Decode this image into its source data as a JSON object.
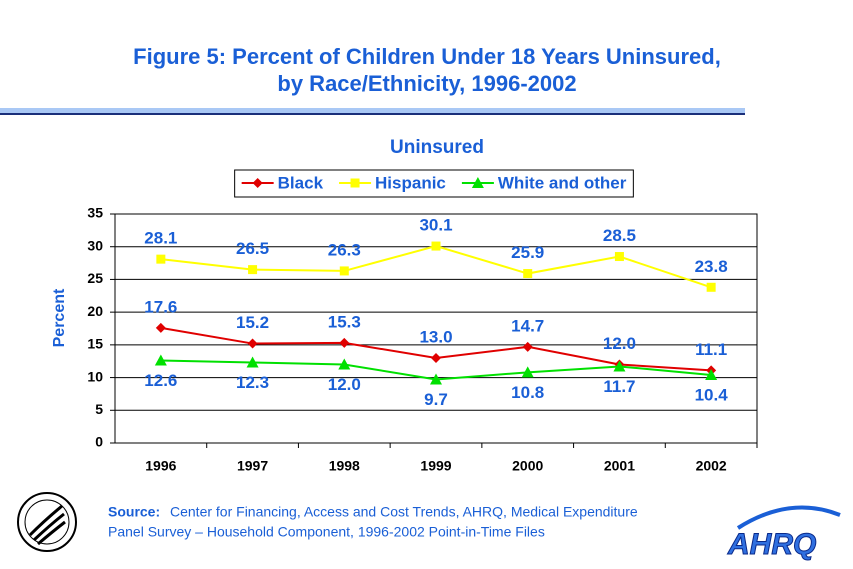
{
  "title_lines": [
    "Figure 5: Percent of Children Under 18 Years Uninsured,",
    "by Race/Ethnicity, 1996-2002"
  ],
  "chart_data": {
    "type": "line",
    "title": "Uninsured",
    "y_label": "Percent",
    "categories": [
      "1996",
      "1997",
      "1998",
      "1999",
      "2000",
      "2001",
      "2002"
    ],
    "series": [
      {
        "name": "Black",
        "color": "#e00000",
        "marker": "diamond",
        "values": [
          17.6,
          15.2,
          15.3,
          13.0,
          14.7,
          12.0,
          11.1
        ],
        "value_labels": [
          "17.6",
          "15.2",
          "15.3",
          "13.0",
          "14.7",
          "12.0",
          "11.1"
        ]
      },
      {
        "name": "Hispanic",
        "color": "#ffff00",
        "marker": "square",
        "values": [
          28.1,
          26.5,
          26.3,
          30.1,
          25.9,
          28.5,
          23.8
        ],
        "value_labels": [
          "28.1",
          "26.5",
          "26.3",
          "30.1",
          "25.9",
          "28.5",
          "23.8"
        ]
      },
      {
        "name": "White and other",
        "color": "#00e000",
        "marker": "triangle",
        "values": [
          12.6,
          12.3,
          12.0,
          9.7,
          10.8,
          11.7,
          10.4
        ],
        "value_labels": [
          "12.6",
          "12.3",
          "12.0",
          "9.7",
          "10.8",
          "11.7",
          "10.4"
        ]
      }
    ],
    "ylim": [
      0,
      35
    ],
    "yticks": [
      0,
      5,
      10,
      15,
      20,
      25,
      30,
      35
    ],
    "grid": true,
    "legend": "top"
  },
  "source": {
    "label": "Source:",
    "lines": [
      "Center for Financing, Access and Cost Trends, AHRQ, Medical Expenditure",
      "Panel Survey – Household Component, 1996-2002 Point-in-Time Files"
    ]
  },
  "logo": "AHRQ"
}
